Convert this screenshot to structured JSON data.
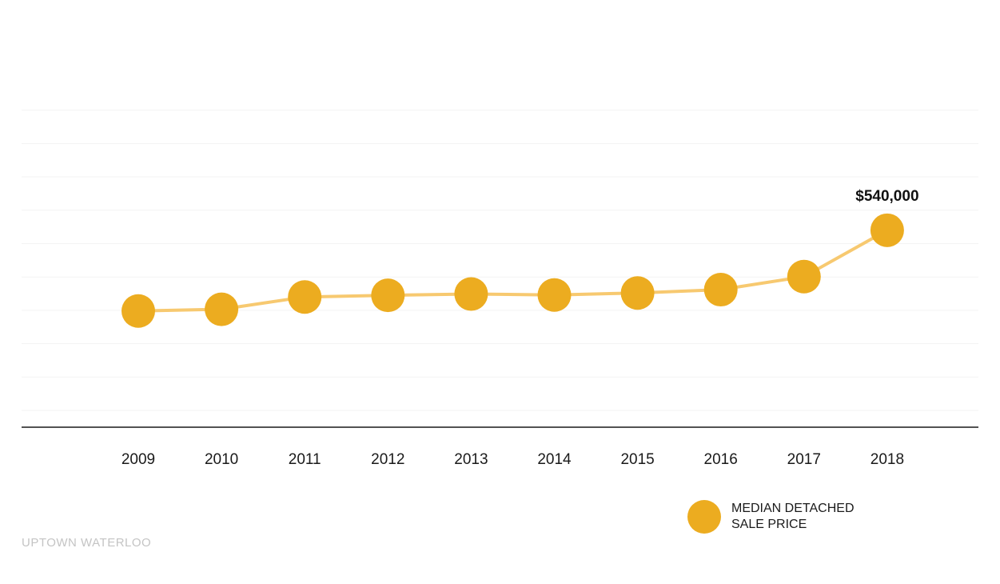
{
  "colors": {
    "marker": "#ECAC20",
    "line": "#F7C970",
    "axis": "#1a1a1a",
    "grid": "#f3f3f3"
  },
  "chart_data": {
    "type": "line",
    "title": "",
    "xlabel": "",
    "ylabel": "",
    "categories": [
      "2009",
      "2010",
      "2011",
      "2012",
      "2013",
      "2014",
      "2015",
      "2016",
      "2017",
      "2018"
    ],
    "series": [
      {
        "name": "MEDIAN DETACHED SALE PRICE",
        "values": [
          298000,
          303000,
          340000,
          345000,
          349000,
          346000,
          352000,
          362000,
          401000,
          540000
        ]
      }
    ],
    "ylim": [
      0,
      1000000
    ],
    "y_ticks_labeled": false,
    "grid": true,
    "legend_position": "bottom-right",
    "annotations": [
      {
        "category": "2018",
        "text": "$540,000"
      }
    ]
  },
  "legend": {
    "label": "MEDIAN DETACHED SALE PRICE"
  },
  "footer": {
    "watermark": "UPTOWN WATERLOO"
  }
}
